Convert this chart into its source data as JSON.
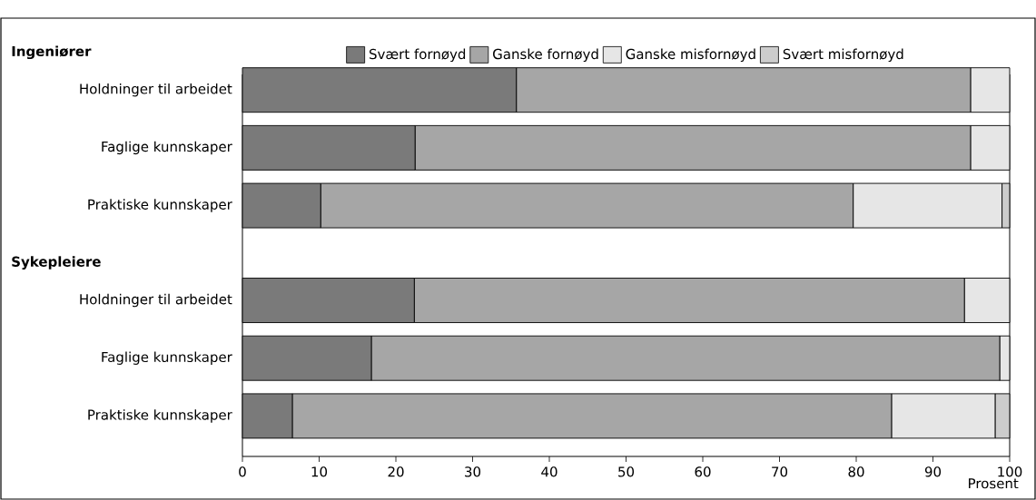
{
  "chart_data": {
    "type": "bar",
    "orientation": "horizontal",
    "stacked": true,
    "categories": [
      "Holdninger til arbeidet",
      "Faglige kunnskaper",
      "Praktiske kunnskaper",
      "Holdninger til arbeidet",
      "Faglige kunnskaper",
      "Praktiske kunnskaper"
    ],
    "series": [
      {
        "name": "Svært fornøyd",
        "color": "#7a7a7a",
        "values": [
          35.7,
          22.5,
          10.2,
          22.4,
          16.8,
          6.5
        ]
      },
      {
        "name": "Ganske fornøyd",
        "color": "#a6a6a6",
        "values": [
          59.2,
          72.4,
          69.4,
          71.7,
          81.9,
          78.1
        ]
      },
      {
        "name": "Ganske misfornøyd",
        "color": "#e6e6e6",
        "values": [
          5.1,
          5.1,
          19.4,
          5.9,
          1.3,
          13.5
        ]
      },
      {
        "name": "Svært misfornøyd",
        "color": "#cccccc",
        "values": [
          0,
          0,
          1.0,
          0,
          0,
          1.9
        ]
      }
    ],
    "xlabel": "Prosent",
    "xlim": [
      0,
      100
    ],
    "xticks": [
      0,
      10,
      20,
      30,
      40,
      50,
      60,
      70,
      80,
      90,
      100
    ],
    "annotations": [
      "Ingeniører",
      "Sykepleiere"
    ],
    "legend": "top",
    "grid": false
  }
}
